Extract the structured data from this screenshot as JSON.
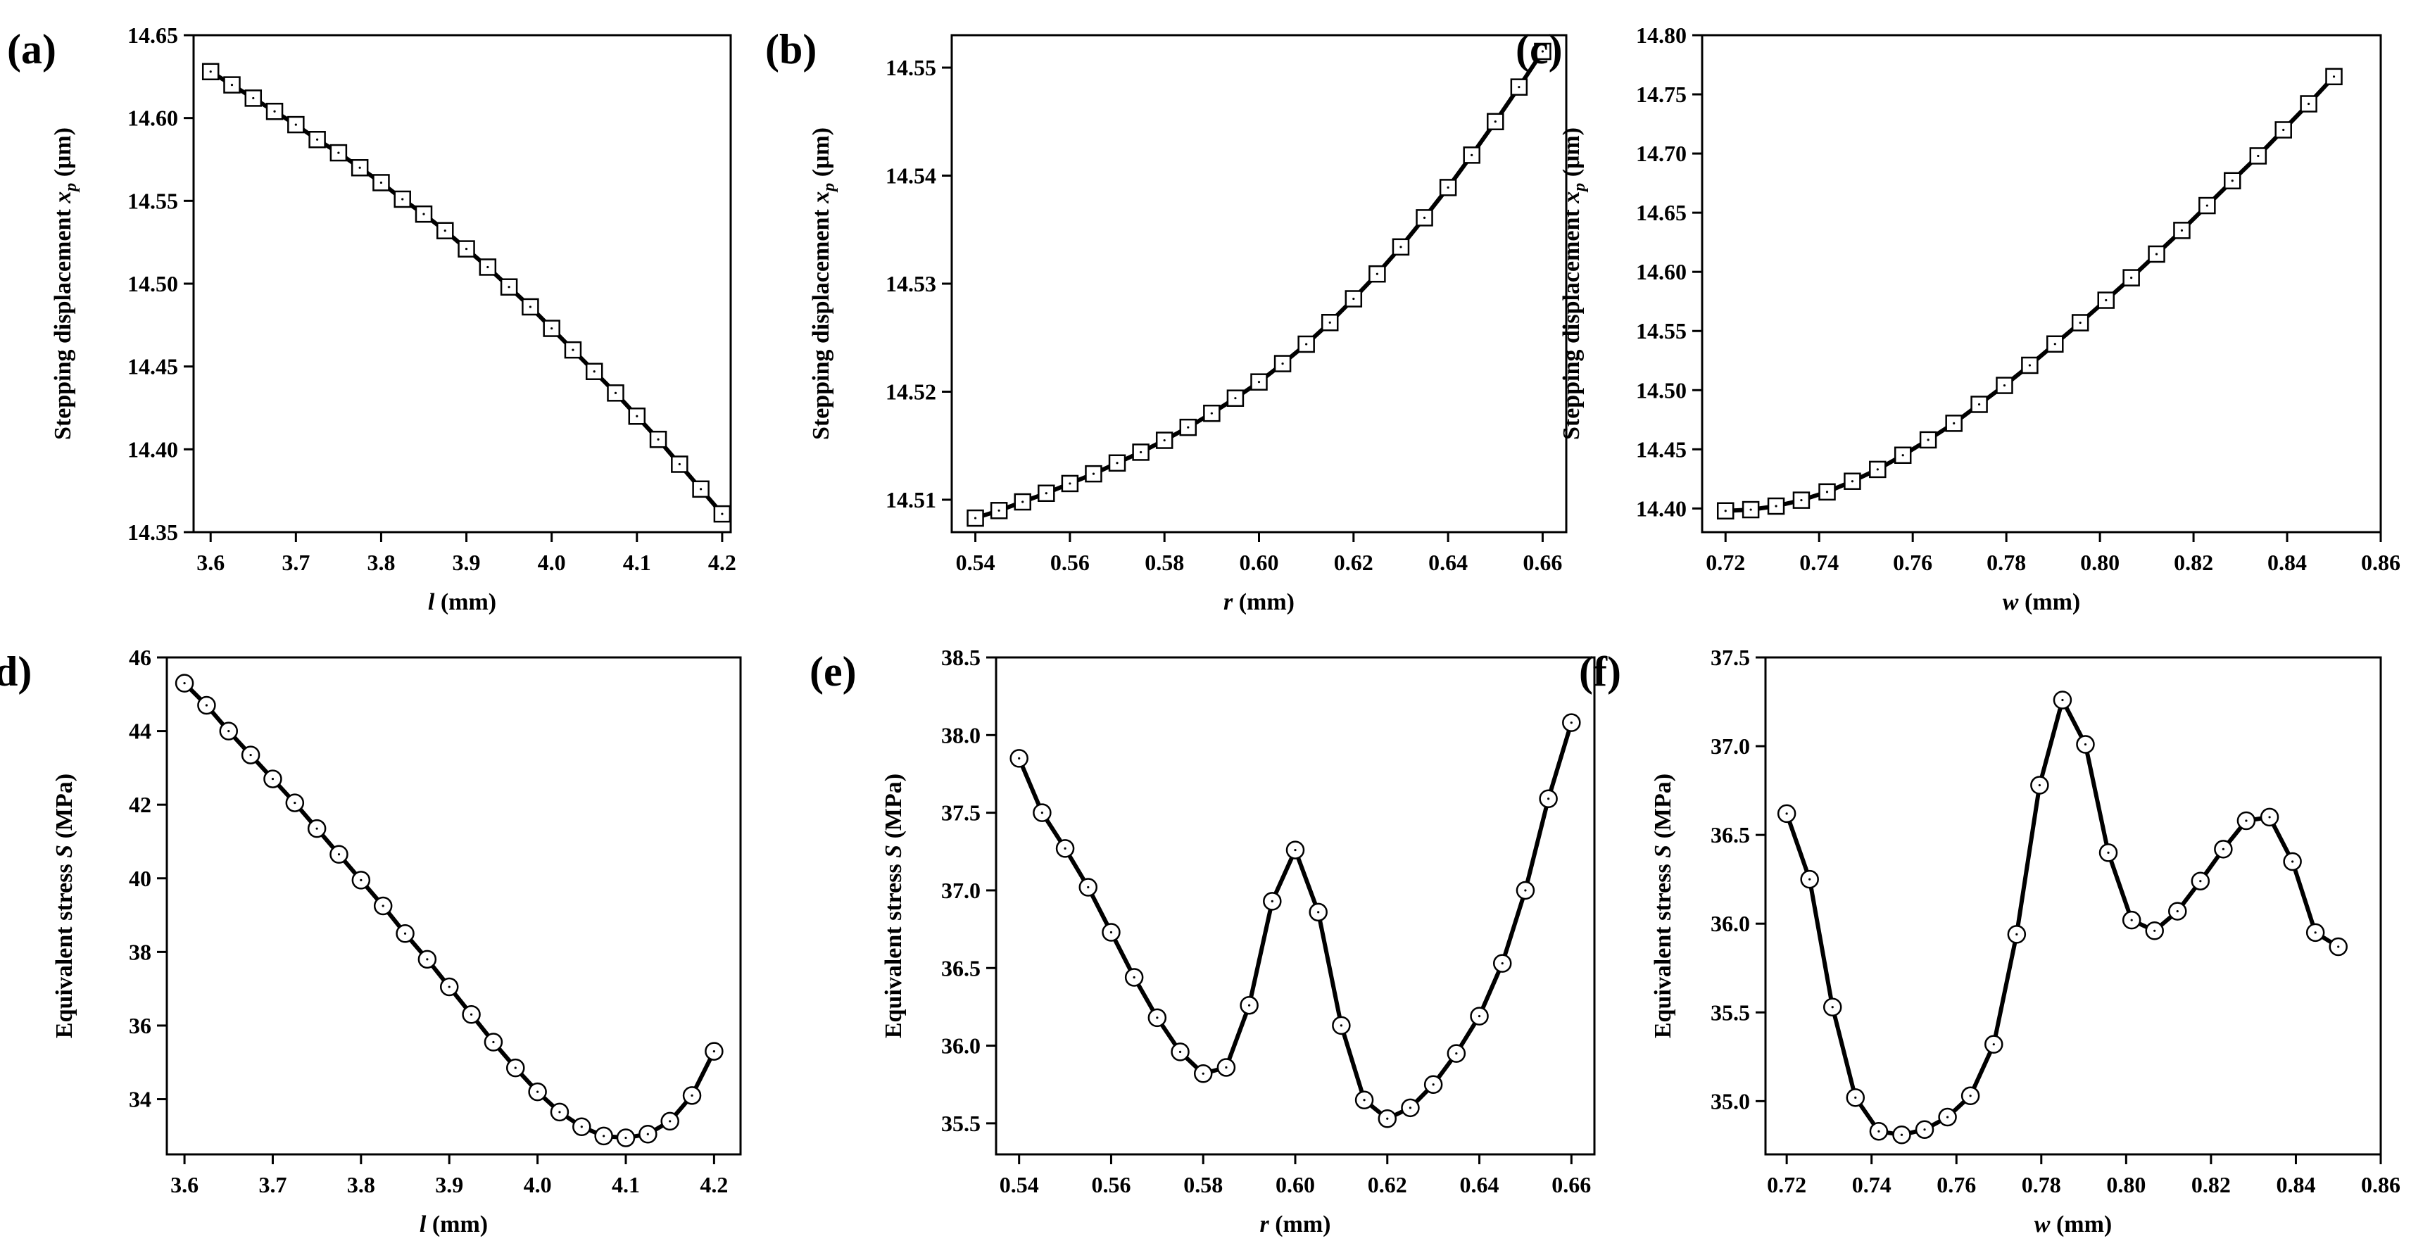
{
  "chart_data": [
    {
      "panel": "(a)",
      "type": "line",
      "marker": "square",
      "xlabel_italic": "l",
      "xlabel_rest": " (mm)",
      "ylabel": "Stepping displacement x_p (μm)",
      "ylabel_text": "Stepping displacement ",
      "ylabel_italic": "x",
      "ylabel_sub": "p",
      "ylabel_unit": " (μm)",
      "xlim": [
        3.58,
        4.21
      ],
      "ylim": [
        14.35,
        14.65
      ],
      "xticks": [
        3.6,
        3.7,
        3.8,
        3.9,
        4.0,
        4.1,
        4.2
      ],
      "xtick_decimals": 1,
      "yticks": [
        14.35,
        14.4,
        14.45,
        14.5,
        14.55,
        14.6,
        14.65
      ],
      "ytick_decimals": 2,
      "x": [
        3.6,
        3.625,
        3.65,
        3.675,
        3.7,
        3.725,
        3.75,
        3.775,
        3.8,
        3.825,
        3.85,
        3.875,
        3.9,
        3.925,
        3.95,
        3.975,
        4.0,
        4.025,
        4.05,
        4.075,
        4.1,
        4.125,
        4.15,
        4.175,
        4.2
      ],
      "y": [
        14.628,
        14.62,
        14.612,
        14.604,
        14.596,
        14.587,
        14.579,
        14.57,
        14.561,
        14.551,
        14.542,
        14.532,
        14.521,
        14.51,
        14.498,
        14.486,
        14.473,
        14.46,
        14.447,
        14.434,
        14.42,
        14.406,
        14.391,
        14.376,
        14.361
      ]
    },
    {
      "panel": "(b)",
      "type": "line",
      "marker": "square",
      "xlabel_italic": "r",
      "xlabel_rest": " (mm)",
      "ylabel": "Stepping displacement x_p (μm)",
      "ylabel_text": "Stepping displacement ",
      "ylabel_italic": "x",
      "ylabel_sub": "p",
      "ylabel_unit": " (μm)",
      "xlim": [
        0.535,
        0.665
      ],
      "ylim": [
        14.507,
        14.553
      ],
      "xticks": [
        0.54,
        0.56,
        0.58,
        0.6,
        0.62,
        0.64,
        0.66
      ],
      "xtick_decimals": 2,
      "yticks": [
        14.51,
        14.52,
        14.53,
        14.54,
        14.55
      ],
      "ytick_decimals": 2,
      "x": [
        0.54,
        0.545,
        0.55,
        0.555,
        0.56,
        0.565,
        0.57,
        0.575,
        0.58,
        0.585,
        0.59,
        0.595,
        0.6,
        0.605,
        0.61,
        0.615,
        0.62,
        0.625,
        0.63,
        0.635,
        0.64,
        0.645,
        0.65,
        0.655,
        0.66
      ],
      "y": [
        14.5083,
        14.509,
        14.5098,
        14.5106,
        14.5115,
        14.5124,
        14.5134,
        14.5144,
        14.5155,
        14.5167,
        14.518,
        14.5194,
        14.5209,
        14.5226,
        14.5244,
        14.5264,
        14.5286,
        14.5309,
        14.5334,
        14.5361,
        14.5389,
        14.5419,
        14.545,
        14.5482,
        14.5515
      ]
    },
    {
      "panel": "(c)",
      "type": "line",
      "marker": "square",
      "xlabel_italic": "w",
      "xlabel_rest": " (mm)",
      "ylabel": "Stepping displacement x_p (μm)",
      "ylabel_text": "Stepping displacement ",
      "ylabel_italic": "x",
      "ylabel_sub": "p",
      "ylabel_unit": " (μm)",
      "xlim": [
        0.715,
        0.86
      ],
      "ylim": [
        14.38,
        14.8
      ],
      "xticks": [
        0.72,
        0.74,
        0.76,
        0.78,
        0.8,
        0.82,
        0.84,
        0.86
      ],
      "xtick_decimals": 2,
      "yticks": [
        14.4,
        14.45,
        14.5,
        14.55,
        14.6,
        14.65,
        14.7,
        14.75,
        14.8
      ],
      "ytick_decimals": 2,
      "x": [
        0.72,
        0.7254,
        0.7308,
        0.7362,
        0.7417,
        0.7471,
        0.7525,
        0.7579,
        0.7633,
        0.7688,
        0.7742,
        0.7796,
        0.785,
        0.7904,
        0.7958,
        0.8013,
        0.8067,
        0.8121,
        0.8175,
        0.8229,
        0.8283,
        0.8338,
        0.8392,
        0.8446,
        0.85
      ],
      "y": [
        14.398,
        14.399,
        14.402,
        14.407,
        14.414,
        14.423,
        14.433,
        14.445,
        14.458,
        14.472,
        14.488,
        14.504,
        14.521,
        14.539,
        14.557,
        14.576,
        14.595,
        14.615,
        14.635,
        14.656,
        14.677,
        14.698,
        14.72,
        14.742,
        14.765
      ]
    },
    {
      "panel": "(d)",
      "type": "line",
      "marker": "circle",
      "xlabel_italic": "l",
      "xlabel_rest": " (mm)",
      "ylabel": "Equivalent stress S (MPa)",
      "ylabel_text": "Equivalent stress ",
      "ylabel_italic": "S",
      "ylabel_sub": "",
      "ylabel_unit": " (MPa)",
      "xlim": [
        3.58,
        4.23
      ],
      "ylim": [
        32.5,
        46
      ],
      "xticks": [
        3.6,
        3.7,
        3.8,
        3.9,
        4.0,
        4.1,
        4.2
      ],
      "xtick_decimals": 1,
      "yticks": [
        34,
        36,
        38,
        40,
        42,
        44,
        46
      ],
      "ytick_decimals": 0,
      "x": [
        3.6,
        3.625,
        3.65,
        3.675,
        3.7,
        3.725,
        3.75,
        3.775,
        3.8,
        3.825,
        3.85,
        3.875,
        3.9,
        3.925,
        3.95,
        3.975,
        4.0,
        4.025,
        4.05,
        4.075,
        4.1,
        4.125,
        4.15,
        4.175,
        4.2
      ],
      "y": [
        45.3,
        44.7,
        44.0,
        43.35,
        42.7,
        42.05,
        41.35,
        40.65,
        39.95,
        39.25,
        38.5,
        37.8,
        37.05,
        36.3,
        35.55,
        34.85,
        34.2,
        33.65,
        33.25,
        33.0,
        32.95,
        33.05,
        33.4,
        34.1,
        35.3
      ]
    },
    {
      "panel": "(e)",
      "type": "line",
      "marker": "circle",
      "xlabel_italic": "r",
      "xlabel_rest": " (mm)",
      "ylabel": "Equivalent stress S (MPa)",
      "ylabel_text": "Equivalent stress ",
      "ylabel_italic": "S",
      "ylabel_sub": "",
      "ylabel_unit": " (MPa)",
      "xlim": [
        0.535,
        0.665
      ],
      "ylim": [
        35.3,
        38.5
      ],
      "xticks": [
        0.54,
        0.56,
        0.58,
        0.6,
        0.62,
        0.64,
        0.66
      ],
      "xtick_decimals": 2,
      "yticks": [
        35.5,
        36.0,
        36.5,
        37.0,
        37.5,
        38.0,
        38.5
      ],
      "ytick_decimals": 1,
      "x": [
        0.54,
        0.545,
        0.55,
        0.555,
        0.56,
        0.565,
        0.57,
        0.575,
        0.58,
        0.585,
        0.59,
        0.595,
        0.6,
        0.605,
        0.61,
        0.615,
        0.62,
        0.625,
        0.63,
        0.635,
        0.64,
        0.645,
        0.65,
        0.655,
        0.66
      ],
      "y": [
        37.85,
        37.5,
        37.27,
        37.02,
        36.73,
        36.44,
        36.18,
        35.96,
        35.82,
        35.86,
        36.26,
        36.93,
        37.26,
        36.86,
        36.13,
        35.65,
        35.53,
        35.6,
        35.75,
        35.95,
        36.19,
        36.53,
        37.0,
        37.59,
        38.08
      ]
    },
    {
      "panel": "(f)",
      "type": "line",
      "marker": "circle",
      "xlabel_italic": "w",
      "xlabel_rest": " (mm)",
      "ylabel": "Equivalent stress S (MPa)",
      "ylabel_text": "Equivalent stress ",
      "ylabel_italic": "S",
      "ylabel_sub": "",
      "ylabel_unit": " (MPa)",
      "xlim": [
        0.715,
        0.86
      ],
      "ylim": [
        34.7,
        37.5
      ],
      "xticks": [
        0.72,
        0.74,
        0.76,
        0.78,
        0.8,
        0.82,
        0.84,
        0.86
      ],
      "xtick_decimals": 2,
      "yticks": [
        35.0,
        35.5,
        36.0,
        36.5,
        37.0,
        37.5
      ],
      "ytick_decimals": 1,
      "x": [
        0.72,
        0.7254,
        0.7308,
        0.7362,
        0.7417,
        0.7471,
        0.7525,
        0.7579,
        0.7633,
        0.7688,
        0.7742,
        0.7796,
        0.785,
        0.7904,
        0.7958,
        0.8013,
        0.8067,
        0.8121,
        0.8175,
        0.8229,
        0.8283,
        0.8338,
        0.8392,
        0.8446,
        0.85
      ],
      "y": [
        36.62,
        36.25,
        35.53,
        35.02,
        34.83,
        34.81,
        34.84,
        34.91,
        35.03,
        35.32,
        35.94,
        36.78,
        37.26,
        37.01,
        36.4,
        36.02,
        35.96,
        36.07,
        36.24,
        36.42,
        36.58,
        36.6,
        36.35,
        35.95,
        35.87
      ]
    }
  ]
}
